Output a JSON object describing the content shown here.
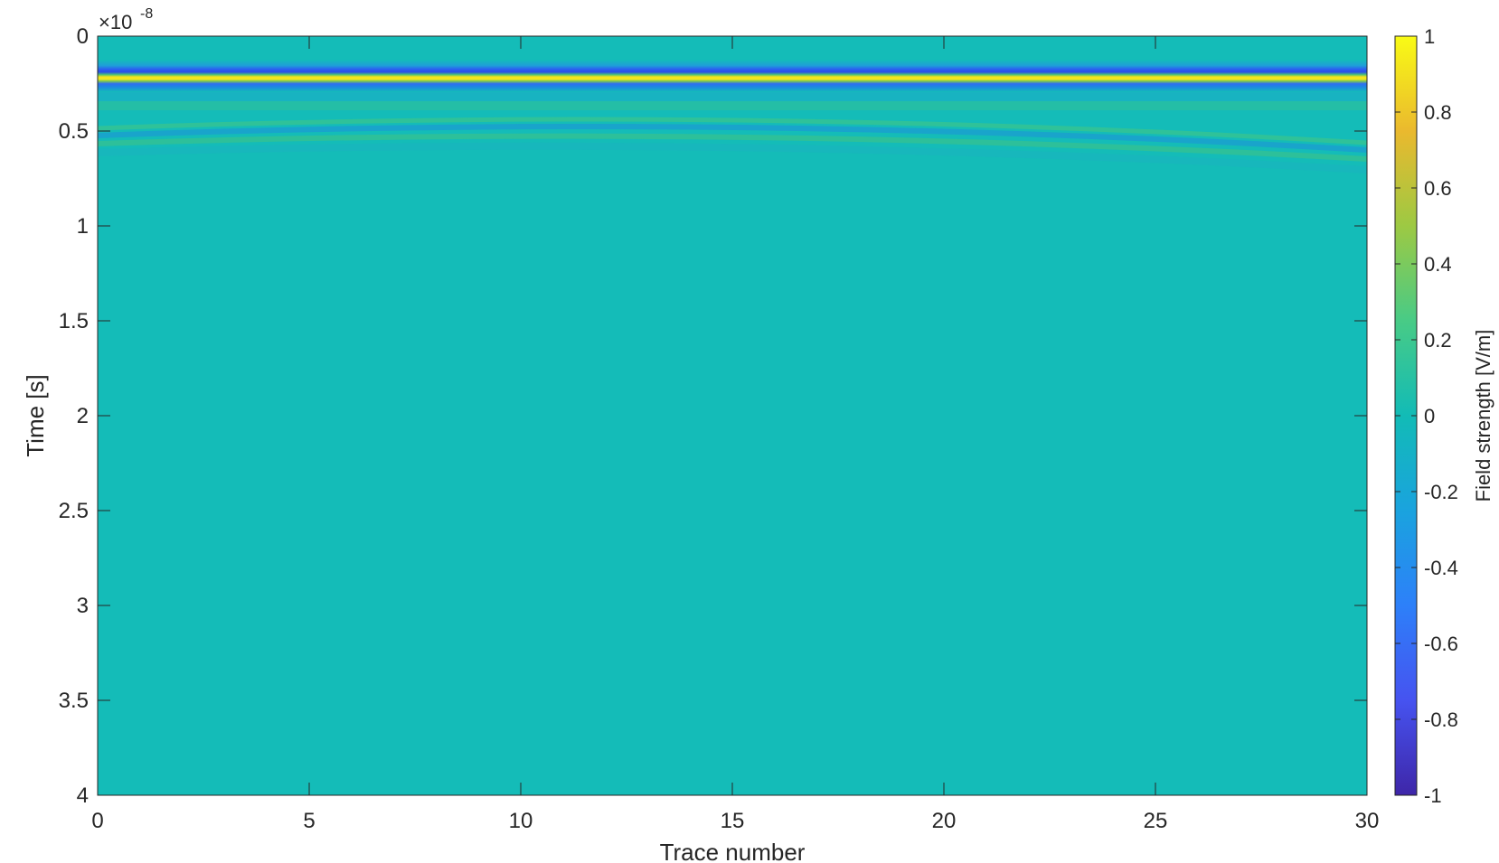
{
  "chart_data": {
    "type": "heatmap",
    "title": "",
    "xlabel": "Trace number",
    "ylabel": "Time [s]",
    "xlim": [
      0,
      30
    ],
    "ylim": [
      0,
      4e-08
    ],
    "y_reversed": true,
    "y_exponent_label": "×10",
    "y_exponent_power": "-8",
    "x_ticks": [
      0,
      5,
      10,
      15,
      20,
      25,
      30
    ],
    "x_tick_labels": [
      "0",
      "5",
      "10",
      "15",
      "20",
      "25",
      "30"
    ],
    "y_ticks": [
      0,
      0.5,
      1,
      1.5,
      2,
      2.5,
      3,
      3.5,
      4
    ],
    "y_tick_labels": [
      "0",
      "0.5",
      "1",
      "1.5",
      "2",
      "2.5",
      "3",
      "3.5",
      "4"
    ],
    "colorbar": {
      "label": "Field strength [V/m]",
      "clim": [
        -1,
        1
      ],
      "ticks": [
        -1,
        -0.8,
        -0.6,
        -0.4,
        -0.2,
        0,
        0.2,
        0.4,
        0.6,
        0.8,
        1
      ],
      "tick_labels": [
        "-1",
        "-0.8",
        "-0.6",
        "-0.4",
        "-0.2",
        "0",
        "0.2",
        "0.4",
        "0.6",
        "0.8",
        "1"
      ],
      "colormap": "parula"
    },
    "background_value": -0.05,
    "features": [
      {
        "name": "direct wave",
        "time_e8": 0.21,
        "amplitude": 1.0,
        "note": "flat horizontal band across all traces, negative lobes above and below"
      },
      {
        "name": "reflection hyperbola",
        "apex_trace": 13.5,
        "apex_time_e8": 0.46,
        "amplitude": 0.15,
        "note": "weak curved reflection"
      }
    ],
    "grid": false,
    "legend": "none"
  }
}
